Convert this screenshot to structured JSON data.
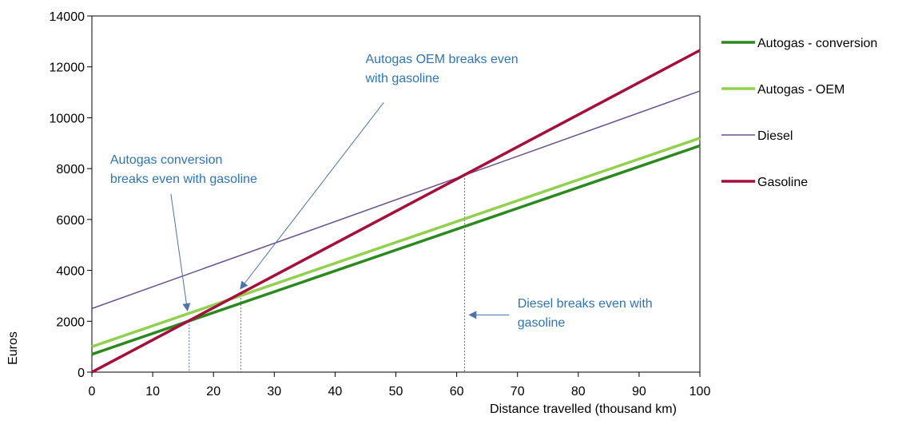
{
  "chart_data": {
    "type": "line",
    "title": "",
    "xlabel": "Distance travelled (thousand km)",
    "ylabel": "Euros",
    "xlim": [
      0,
      100
    ],
    "ylim": [
      0,
      14000
    ],
    "x_ticks": [
      0,
      10,
      20,
      30,
      40,
      50,
      60,
      70,
      80,
      90,
      100
    ],
    "y_ticks": [
      0,
      2000,
      4000,
      6000,
      8000,
      10000,
      12000,
      14000
    ],
    "grid": false,
    "legend_placement": "right",
    "series": [
      {
        "name": "Autogas - conversion",
        "x": [
          0,
          100
        ],
        "y": [
          700,
          8900
        ],
        "color": "#2a8a1e",
        "line_weight": "thick"
      },
      {
        "name": "Autogas - OEM",
        "x": [
          0,
          100
        ],
        "y": [
          1000,
          9200
        ],
        "color": "#92d050",
        "line_weight": "thick"
      },
      {
        "name": "Diesel",
        "x": [
          0,
          100
        ],
        "y": [
          2500,
          11050
        ],
        "color": "#6a4f8f",
        "line_weight": "thin"
      },
      {
        "name": "Gasoline",
        "x": [
          0,
          100
        ],
        "y": [
          0,
          12650
        ],
        "color": "#a50f3c",
        "line_weight": "thick"
      }
    ],
    "reference_lines": [
      {
        "x": 16,
        "y": 2000
      },
      {
        "x": 24.5,
        "y": 3050
      },
      {
        "x": 61.3,
        "y": 7750
      }
    ],
    "annotations": [
      {
        "lines": [
          "Autogas conversion",
          "breaks even with gasoline"
        ],
        "text_x": 3,
        "text_y": 8200,
        "arrow_from": [
          13,
          7000
        ],
        "arrow_to": [
          15.7,
          2450
        ]
      },
      {
        "lines": [
          "Autogas OEM breaks even",
          "with gasoline"
        ],
        "text_x": 45,
        "text_y": 12150,
        "arrow_from": [
          48,
          10600
        ],
        "arrow_to": [
          24.5,
          3300
        ]
      },
      {
        "lines": [
          "Diesel breaks even with",
          "gasoline"
        ],
        "text_x": 70,
        "text_y": 2550,
        "arrow_from": [
          68.6,
          2250
        ],
        "arrow_to": [
          62.2,
          2250
        ]
      }
    ]
  }
}
